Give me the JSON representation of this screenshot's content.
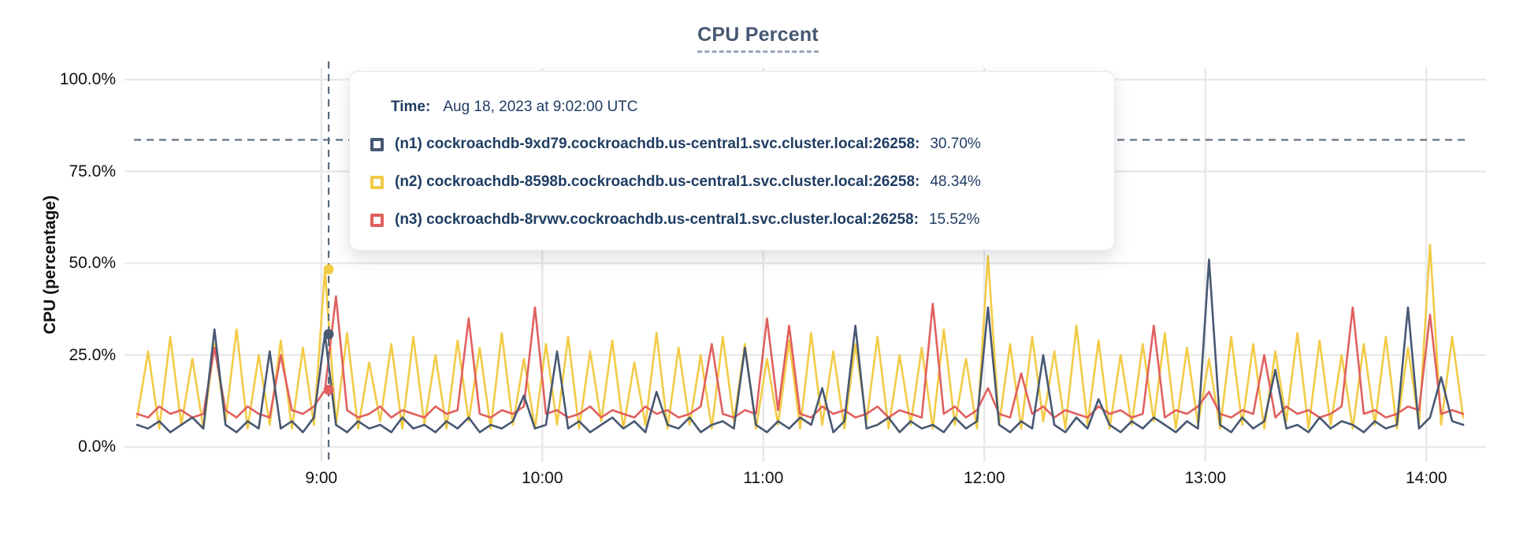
{
  "chart": {
    "title": "CPU Percent"
  },
  "tooltip": {
    "time_label": "Time:",
    "time_value": "Aug 18, 2023 at 9:02:00 UTC"
  },
  "chart_data": {
    "type": "line",
    "title": "CPU Percent",
    "xlabel": "",
    "ylabel": "CPU (percentage)",
    "ylim": [
      0,
      100
    ],
    "grid": true,
    "legend_position": "tooltip-overlay",
    "y_ticks": [
      0,
      25,
      50,
      75,
      100
    ],
    "y_tick_labels": [
      "0.0%",
      "25.0%",
      "50.0%",
      "75.0%",
      "100.0%"
    ],
    "x_tick_labels": [
      "9:00",
      "10:00",
      "11:00",
      "12:00",
      "13:00",
      "14:00"
    ],
    "x_ticks_minutes": [
      540,
      600,
      660,
      720,
      780,
      840
    ],
    "x_domain_minutes": [
      490,
      850
    ],
    "x_step_minutes": 3,
    "crosshair_color": "#5a6b7d",
    "grid_color": "#e9e9e9",
    "hover": {
      "time_minutes": 542,
      "time_text": "9:02",
      "crosshair_y_percent": 83.6
    },
    "series": [
      {
        "id": "n1",
        "label": "(n1) cockroachdb-9xd79.cockroachdb.us-central1.svc.cluster.local:26258:",
        "hover_value": "30.70%",
        "hover_percent": 30.7,
        "color": "#475872",
        "values": [
          6,
          5,
          7,
          4,
          6,
          8,
          5,
          32,
          6,
          4,
          7,
          5,
          26,
          5,
          7,
          4,
          8,
          30.7,
          6,
          4,
          7,
          5,
          6,
          4,
          8,
          5,
          6,
          4,
          7,
          5,
          8,
          4,
          6,
          5,
          7,
          14,
          5,
          6,
          26,
          5,
          7,
          4,
          6,
          8,
          5,
          7,
          4,
          15,
          6,
          5,
          8,
          4,
          6,
          7,
          5,
          27,
          6,
          4,
          7,
          5,
          8,
          6,
          16,
          4,
          7,
          33,
          5,
          6,
          8,
          4,
          7,
          5,
          6,
          4,
          8,
          5,
          7,
          38,
          6,
          4,
          7,
          5,
          25,
          6,
          4,
          8,
          5,
          13,
          6,
          4,
          7,
          5,
          8,
          6,
          4,
          7,
          5,
          51,
          6,
          4,
          8,
          5,
          7,
          21,
          5,
          6,
          4,
          8,
          5,
          7,
          6,
          4,
          7,
          5,
          6,
          38,
          5,
          8,
          19,
          7,
          6
        ]
      },
      {
        "id": "n2",
        "label": "(n2) cockroachdb-8598b.cockroachdb.us-central1.svc.cluster.local:26258:",
        "hover_value": "48.34%",
        "hover_percent": 48.34,
        "color": "#f2cb46",
        "values": [
          8,
          26,
          5,
          30,
          6,
          24,
          5,
          28,
          7,
          32,
          5,
          25,
          6,
          29,
          5,
          27,
          6,
          48.3,
          6,
          31,
          5,
          23,
          7,
          28,
          5,
          30,
          6,
          25,
          5,
          29,
          7,
          27,
          5,
          31,
          6,
          24,
          5,
          28,
          6,
          30,
          5,
          26,
          7,
          29,
          5,
          23,
          6,
          31,
          5,
          27,
          6,
          25,
          5,
          30,
          7,
          28,
          5,
          24,
          6,
          29,
          5,
          31,
          6,
          26,
          5,
          28,
          7,
          30,
          5,
          25,
          6,
          27,
          5,
          32,
          6,
          24,
          5,
          52,
          6,
          28,
          5,
          30,
          7,
          26,
          5,
          33,
          6,
          29,
          5,
          25,
          6,
          28,
          7,
          31,
          5,
          27,
          6,
          24,
          5,
          30,
          6,
          28,
          5,
          26,
          7,
          31,
          5,
          29,
          6,
          25,
          5,
          28,
          6,
          30,
          5,
          27,
          6,
          55,
          6,
          30,
          8
        ]
      },
      {
        "id": "n3",
        "label": "(n3) cockroachdb-8rvwv.cockroachdb.us-central1.svc.cluster.local:26258:",
        "hover_value": "15.52%",
        "hover_percent": 15.52,
        "color": "#e0605e",
        "values": [
          9,
          8,
          11,
          9,
          10,
          8,
          9,
          27,
          10,
          8,
          11,
          9,
          8,
          25,
          10,
          9,
          11,
          15.5,
          41,
          10,
          8,
          9,
          11,
          8,
          10,
          9,
          8,
          11,
          9,
          10,
          35,
          9,
          8,
          10,
          9,
          11,
          38,
          9,
          10,
          8,
          9,
          11,
          8,
          10,
          9,
          8,
          11,
          9,
          10,
          8,
          9,
          11,
          28,
          9,
          8,
          10,
          9,
          35,
          10,
          33,
          9,
          8,
          11,
          9,
          10,
          8,
          9,
          11,
          8,
          10,
          9,
          8,
          39,
          9,
          11,
          8,
          10,
          16,
          9,
          8,
          20,
          9,
          11,
          8,
          10,
          9,
          8,
          11,
          9,
          10,
          8,
          9,
          33,
          8,
          10,
          9,
          11,
          15,
          9,
          8,
          10,
          9,
          25,
          8,
          11,
          9,
          10,
          8,
          9,
          11,
          38,
          9,
          10,
          8,
          9,
          11,
          10,
          36,
          9,
          10,
          9
        ]
      }
    ]
  }
}
